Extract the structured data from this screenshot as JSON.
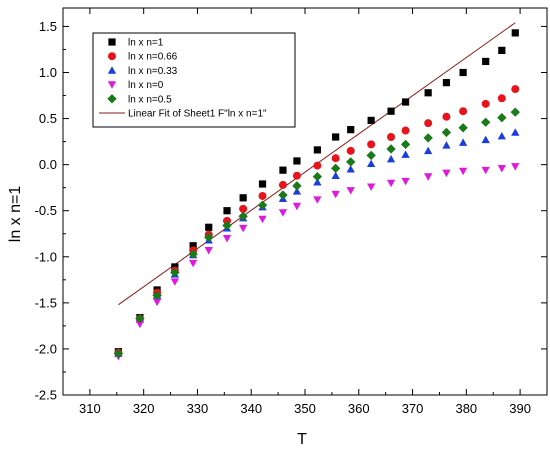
{
  "chart_data": {
    "type": "scatter",
    "title": "",
    "xlabel": "T",
    "ylabel": "ln x n=1",
    "xlim": [
      305,
      395
    ],
    "ylim": [
      -2.5,
      1.7
    ],
    "xticks": [
      310,
      320,
      330,
      340,
      350,
      360,
      370,
      380,
      390
    ],
    "yticks": [
      -2.5,
      -2.0,
      -1.5,
      -1.0,
      -0.5,
      0.0,
      0.5,
      1.0,
      1.5
    ],
    "xtick_labels": [
      "310",
      "320",
      "330",
      "340",
      "350",
      "360",
      "370",
      "380",
      "390"
    ],
    "ytick_labels": [
      "-2.5",
      "-2.0",
      "-1.5",
      "-1.0",
      "-0.5",
      "0.0",
      "0.5",
      "1.0",
      "1.5"
    ],
    "grid": false,
    "legend_position": "top-left",
    "x": [
      315.3,
      319.3,
      322.5,
      325.8,
      329.2,
      332.1,
      335.5,
      338.5,
      342.1,
      345.9,
      348.5,
      352.3,
      355.7,
      358.5,
      362.3,
      366.0,
      368.7,
      372.9,
      376.3,
      379.4,
      383.6,
      386.6,
      389.1
    ],
    "series": [
      {
        "name": "ln x n=1",
        "marker": "square",
        "color": "#000000",
        "values": [
          -2.03,
          -1.66,
          -1.36,
          -1.11,
          -0.88,
          -0.68,
          -0.5,
          -0.36,
          -0.21,
          -0.06,
          0.04,
          0.16,
          0.3,
          0.38,
          0.48,
          0.58,
          0.68,
          0.78,
          0.89,
          1.0,
          1.12,
          1.24,
          1.43
        ]
      },
      {
        "name": "ln x n=0.66",
        "marker": "circle",
        "color": "#e8141b",
        "values": [
          -2.04,
          -1.67,
          -1.39,
          -1.15,
          -0.93,
          -0.76,
          -0.61,
          -0.48,
          -0.34,
          -0.22,
          -0.12,
          -0.01,
          0.07,
          0.15,
          0.22,
          0.3,
          0.37,
          0.45,
          0.52,
          0.58,
          0.66,
          0.72,
          0.82
        ]
      },
      {
        "name": "ln x n=0.33",
        "marker": "triangle-up",
        "color": "#1a3de0",
        "values": [
          -2.05,
          -1.68,
          -1.42,
          -1.19,
          -0.98,
          -0.82,
          -0.69,
          -0.58,
          -0.46,
          -0.37,
          -0.29,
          -0.19,
          -0.12,
          -0.05,
          0.01,
          0.06,
          0.11,
          0.15,
          0.21,
          0.24,
          0.27,
          0.31,
          0.35
        ]
      },
      {
        "name": "ln x n=0",
        "marker": "triangle-down",
        "color": "#e019e0",
        "values": [
          -2.08,
          -1.73,
          -1.49,
          -1.27,
          -1.07,
          -0.93,
          -0.8,
          -0.69,
          -0.59,
          -0.52,
          -0.45,
          -0.38,
          -0.32,
          -0.28,
          -0.24,
          -0.2,
          -0.18,
          -0.13,
          -0.09,
          -0.07,
          -0.06,
          -0.04,
          -0.02
        ]
      },
      {
        "name": "ln x n=0.5",
        "marker": "diamond",
        "color": "#1a7a1a",
        "values": [
          -2.05,
          -1.67,
          -1.42,
          -1.17,
          -0.97,
          -0.79,
          -0.66,
          -0.56,
          -0.44,
          -0.33,
          -0.23,
          -0.13,
          -0.04,
          0.03,
          0.1,
          0.17,
          0.22,
          0.29,
          0.35,
          0.4,
          0.46,
          0.51,
          0.57
        ]
      }
    ],
    "fit_line": {
      "name": "Linear Fit of Sheet1 F\"ln x n=1\"",
      "color": "#8b1a1a",
      "x": [
        315.3,
        389.1
      ],
      "y": [
        -1.52,
        1.54
      ]
    }
  }
}
